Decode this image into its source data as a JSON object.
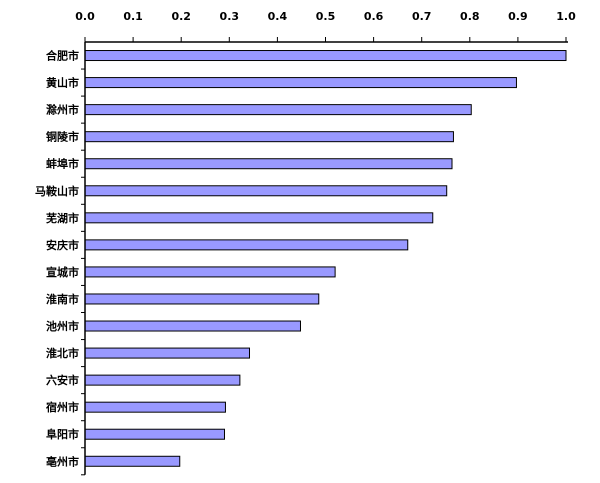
{
  "chart_data": {
    "type": "bar",
    "orientation": "horizontal",
    "categories": [
      "合肥市",
      "黄山市",
      "滁州市",
      "铜陵市",
      "蚌埠市",
      "马鞍山市",
      "芜湖市",
      "安庆市",
      "宣城市",
      "淮南市",
      "池州市",
      "淮北市",
      "六安市",
      "宿州市",
      "阜阳市",
      "亳州市"
    ],
    "values": [
      1.0,
      0.897,
      0.803,
      0.766,
      0.763,
      0.752,
      0.723,
      0.671,
      0.52,
      0.486,
      0.448,
      0.342,
      0.322,
      0.292,
      0.29,
      0.197
    ],
    "x_ticks": [
      "0.0",
      "0.1",
      "0.2",
      "0.3",
      "0.4",
      "0.5",
      "0.6",
      "0.7",
      "0.8",
      "0.9",
      "1.0"
    ],
    "xlim": [
      0,
      1.0
    ],
    "axis_position": "top",
    "grid": false,
    "legend": false,
    "title": "",
    "xlabel": "",
    "ylabel": "",
    "colors": {
      "bar_fill": "#9999ff",
      "bar_stroke": "#000000",
      "axis": "#000000"
    }
  }
}
